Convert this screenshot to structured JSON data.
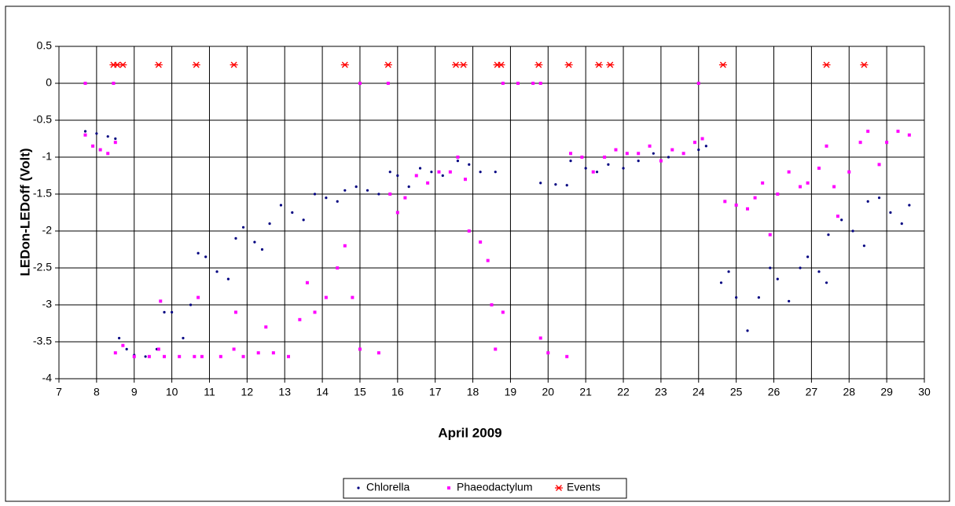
{
  "chart_data": {
    "type": "scatter",
    "xlabel": "April 2009",
    "ylabel": "LEDon-LEDoff (Volt)",
    "xlim": [
      7,
      30
    ],
    "xticks": [
      7,
      8,
      9,
      10,
      11,
      12,
      13,
      14,
      15,
      16,
      17,
      18,
      19,
      20,
      21,
      22,
      23,
      24,
      25,
      26,
      27,
      28,
      29,
      30
    ],
    "ylim": [
      -4,
      0.5
    ],
    "yticks": [
      0.5,
      0,
      -0.5,
      -1,
      -1.5,
      -2,
      -2.5,
      -3,
      -3.5,
      -4
    ],
    "grid": true,
    "legend": "bottom",
    "series": [
      {
        "name": "Chlorella",
        "color": "#000080",
        "marker": "dot",
        "x": [
          7.7,
          8.0,
          8.3,
          8.5,
          8.6,
          8.8,
          9.0,
          9.3,
          9.6,
          9.8,
          10.0,
          10.3,
          10.5,
          10.7,
          10.9,
          11.2,
          11.5,
          11.7,
          11.9,
          12.2,
          12.4,
          12.6,
          12.9,
          13.2,
          13.5,
          13.8,
          14.1,
          14.4,
          14.6,
          14.9,
          15.2,
          15.5,
          15.8,
          16.0,
          16.3,
          16.6,
          16.9,
          17.2,
          17.6,
          17.9,
          18.2,
          18.6,
          19.8,
          20.2,
          20.5,
          20.6,
          21.0,
          21.3,
          21.6,
          22.0,
          22.4,
          22.8,
          23.2,
          23.6,
          24.0,
          24.2,
          24.6,
          24.8,
          25.0,
          25.3,
          25.6,
          25.9,
          26.1,
          26.4,
          26.7,
          26.9,
          27.2,
          27.4,
          27.45,
          27.8,
          28.1,
          28.4,
          28.5,
          28.8,
          29.1,
          29.4,
          29.6
        ],
        "values": [
          -0.65,
          -0.68,
          -0.72,
          -0.75,
          -3.45,
          -3.6,
          -3.68,
          -3.7,
          -3.6,
          -3.1,
          -3.1,
          -3.45,
          -3.0,
          -2.3,
          -2.35,
          -2.55,
          -2.65,
          -2.1,
          -1.95,
          -2.15,
          -2.25,
          -1.9,
          -1.65,
          -1.75,
          -1.85,
          -1.5,
          -1.55,
          -1.6,
          -1.45,
          -1.4,
          -1.45,
          -1.5,
          -1.2,
          -1.25,
          -1.4,
          -1.15,
          -1.2,
          -1.25,
          -1.05,
          -1.1,
          -1.2,
          -1.2,
          -1.35,
          -1.37,
          -1.38,
          -1.05,
          -1.15,
          -1.2,
          -1.1,
          -1.15,
          -1.05,
          -0.95,
          -1.0,
          -0.95,
          -0.9,
          -0.85,
          -2.7,
          -2.55,
          -2.9,
          -3.35,
          -2.9,
          -2.5,
          -2.65,
          -2.95,
          -2.5,
          -2.35,
          -2.55,
          -2.7,
          -2.05,
          -1.85,
          -2.0,
          -2.2,
          -1.6,
          -1.55,
          -1.75,
          -1.9,
          -1.65
        ]
      },
      {
        "name": "Phaeodactylum",
        "color": "#ff00ff",
        "marker": "square",
        "x": [
          7.7,
          7.9,
          8.1,
          8.3,
          8.5,
          8.5,
          8.7,
          9.0,
          9.4,
          9.65,
          9.7,
          9.8,
          10.2,
          10.6,
          10.7,
          10.8,
          11.3,
          11.65,
          11.7,
          11.9,
          12.3,
          12.5,
          12.7,
          13.1,
          13.4,
          13.6,
          13.8,
          14.1,
          14.4,
          14.6,
          14.8,
          15.0,
          15.5,
          15.8,
          16.0,
          16.2,
          16.5,
          16.8,
          17.1,
          17.4,
          17.6,
          17.8,
          17.9,
          18.2,
          18.4,
          18.5,
          18.6,
          18.8,
          18.8,
          19.2,
          19.6,
          19.8,
          19.8,
          20.0,
          20.5,
          20.6,
          20.9,
          21.2,
          21.5,
          21.8,
          22.1,
          22.4,
          22.7,
          23.0,
          23.3,
          23.6,
          23.9,
          24.1,
          24.7,
          25.0,
          25.3,
          25.5,
          25.7,
          25.9,
          26.1,
          26.4,
          26.7,
          26.9,
          27.2,
          27.4,
          27.6,
          27.7,
          28.0,
          28.3,
          28.5,
          28.8,
          29.0,
          29.3,
          29.6,
          7.7,
          8.45,
          15.0,
          15.75,
          24.0
        ],
        "values": [
          -0.7,
          -0.85,
          -0.9,
          -0.95,
          -0.8,
          -3.65,
          -3.55,
          -3.7,
          -3.7,
          -3.6,
          -2.95,
          -3.7,
          -3.7,
          -3.7,
          -2.9,
          -3.7,
          -3.7,
          -3.6,
          -3.1,
          -3.7,
          -3.65,
          -3.3,
          -3.65,
          -3.7,
          -3.2,
          -2.7,
          -3.1,
          -2.9,
          -2.5,
          -2.2,
          -2.9,
          -3.6,
          -3.65,
          -1.5,
          -1.75,
          -1.55,
          -1.25,
          -1.35,
          -1.2,
          -1.2,
          -1.0,
          -1.3,
          -2.0,
          -2.15,
          -2.4,
          -3.0,
          -3.6,
          -3.1,
          0,
          0,
          0,
          0,
          -3.45,
          -3.65,
          -3.7,
          -0.95,
          -1.0,
          -1.2,
          -1.0,
          -0.9,
          -0.95,
          -0.95,
          -0.85,
          -1.05,
          -0.9,
          -0.95,
          -0.8,
          -0.75,
          -1.6,
          -1.65,
          -1.7,
          -1.55,
          -1.35,
          -2.05,
          -1.5,
          -1.2,
          -1.4,
          -1.35,
          -1.15,
          -0.85,
          -1.4,
          -1.8,
          -1.2,
          -0.8,
          -0.65,
          -1.1,
          -0.8,
          -0.65,
          -0.7,
          0,
          0,
          0,
          0,
          0
        ]
      },
      {
        "name": "Events",
        "color": "#ff0000",
        "marker": "asterisk",
        "x": [
          8.45,
          8.55,
          8.7,
          9.65,
          10.65,
          11.65,
          14.6,
          15.75,
          17.55,
          17.75,
          18.65,
          18.75,
          19.75,
          20.55,
          21.35,
          21.65,
          24.65,
          27.4,
          28.4
        ],
        "values": [
          0.25,
          0.25,
          0.25,
          0.25,
          0.25,
          0.25,
          0.25,
          0.25,
          0.25,
          0.25,
          0.25,
          0.25,
          0.25,
          0.25,
          0.25,
          0.25,
          0.25,
          0.25,
          0.25
        ]
      }
    ]
  }
}
